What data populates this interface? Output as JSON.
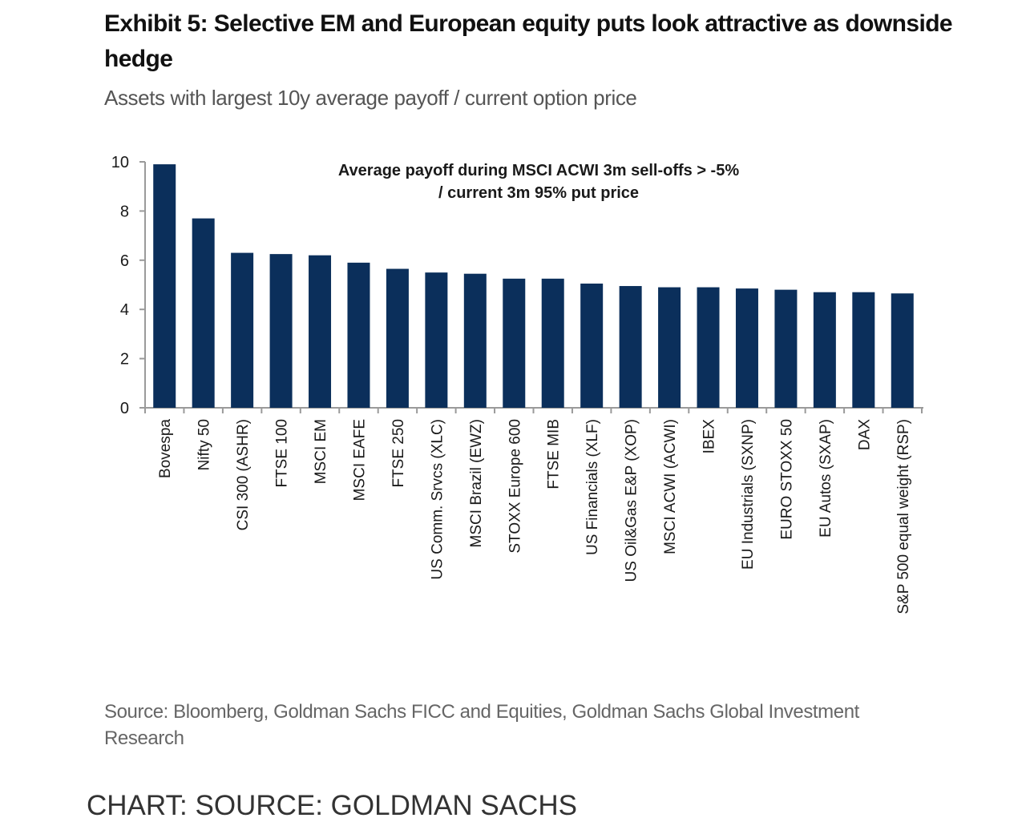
{
  "title_line1": "Exhibit 5: Selective EM and European equity puts look attractive as downside",
  "title_line2": "hedge",
  "subtitle": "Assets with largest 10y average payoff / current option price",
  "source_note": "Source: Bloomberg, Goldman Sachs FICC and Equities, Goldman Sachs Global Investment Research",
  "credit": "CHART: SOURCE: GOLDMAN SACHS",
  "colors": {
    "bar": "#0b2f5b",
    "axis": "#9a9a9a",
    "text": "#1a1a1a"
  },
  "chart_data": {
    "type": "bar",
    "annotation": [
      "Average payoff during MSCI ACWI 3m sell-offs > -5%",
      "/ current 3m 95% put price"
    ],
    "categories": [
      "Bovespa",
      "Nifty 50",
      "CSI 300 (ASHR)",
      "FTSE 100",
      "MSCI EM",
      "MSCI EAFE",
      "FTSE 250",
      "US Comm. Srvcs (XLC)",
      "MSCI Brazil (EWZ)",
      "STOXX Europe 600",
      "FTSE MIB",
      "US Financials (XLF)",
      "US Oil&Gas E&P (XOP)",
      "MSCI ACWI (ACWI)",
      "IBEX",
      "EU Industrials (SXNP)",
      "EURO STOXX 50",
      "EU Autos (SXAP)",
      "DAX",
      "S&P 500 equal weight (RSP)"
    ],
    "values": [
      9.9,
      7.7,
      6.3,
      6.25,
      6.2,
      5.9,
      5.65,
      5.5,
      5.45,
      5.25,
      5.25,
      5.05,
      4.95,
      4.9,
      4.9,
      4.85,
      4.8,
      4.7,
      4.7,
      4.65
    ],
    "y_ticks": [
      "0",
      "2",
      "4",
      "6",
      "8",
      "10"
    ],
    "ylim": [
      0,
      10
    ],
    "grid": false,
    "legend": "none"
  }
}
